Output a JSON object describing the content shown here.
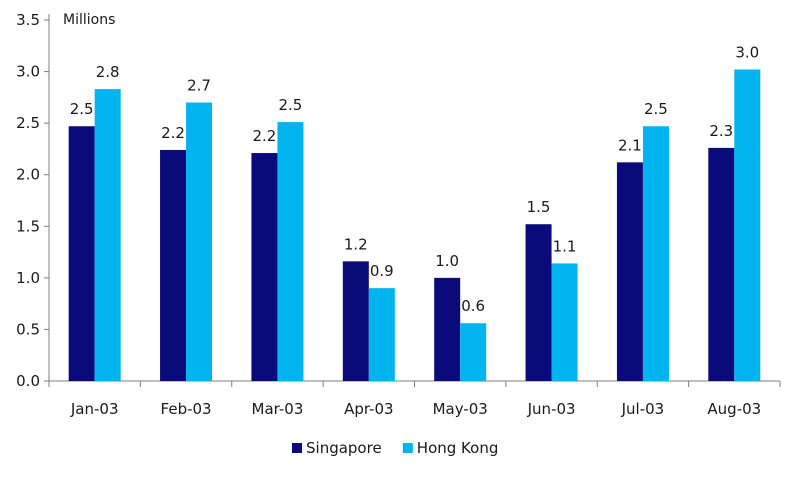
{
  "chart_data": {
    "type": "bar",
    "title": "",
    "xlabel": "",
    "ylabel": "Millions",
    "ylim": [
      0,
      3.5
    ],
    "yticks": [
      "0.0",
      "0.5",
      "1.0",
      "1.5",
      "2.0",
      "2.5",
      "3.0",
      "3.5"
    ],
    "categories": [
      "Jan-03",
      "Feb-03",
      "Mar-03",
      "Apr-03",
      "May-03",
      "Jun-03",
      "Jul-03",
      "Aug-03"
    ],
    "series": [
      {
        "name": "Singapore",
        "color": "#0a0a7a",
        "values": [
          2.47,
          2.24,
          2.21,
          1.16,
          1.0,
          1.52,
          2.12,
          2.26
        ],
        "labels": [
          "2.5",
          "2.2",
          "2.2",
          "1.2",
          "1.0",
          "1.5",
          "2.1",
          "2.3"
        ]
      },
      {
        "name": "Hong Kong",
        "color": "#00b4f0",
        "values": [
          2.83,
          2.7,
          2.51,
          0.9,
          0.56,
          1.14,
          2.47,
          3.02
        ],
        "labels": [
          "2.8",
          "2.7",
          "2.5",
          "0.9",
          "0.6",
          "1.1",
          "2.5",
          "3.0"
        ]
      }
    ],
    "grid": false,
    "legend_position": "bottom-center"
  }
}
